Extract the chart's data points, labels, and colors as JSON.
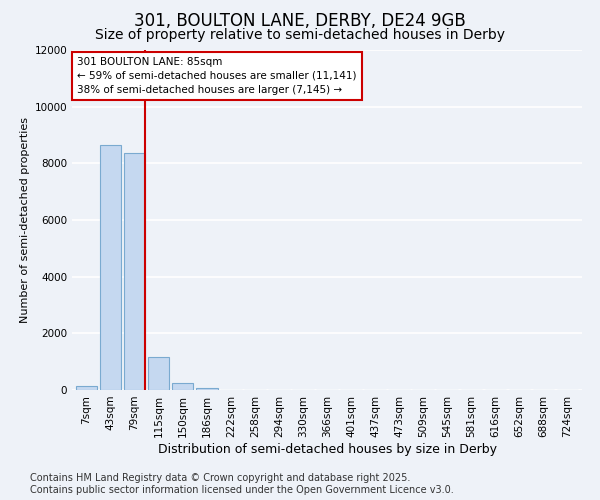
{
  "title_line1": "301, BOULTON LANE, DERBY, DE24 9GB",
  "title_line2": "Size of property relative to semi-detached houses in Derby",
  "xlabel": "Distribution of semi-detached houses by size in Derby",
  "ylabel": "Number of semi-detached properties",
  "categories": [
    "7sqm",
    "43sqm",
    "79sqm",
    "115sqm",
    "150sqm",
    "186sqm",
    "222sqm",
    "258sqm",
    "294sqm",
    "330sqm",
    "366sqm",
    "401sqm",
    "437sqm",
    "473sqm",
    "509sqm",
    "545sqm",
    "581sqm",
    "616sqm",
    "652sqm",
    "688sqm",
    "724sqm"
  ],
  "values": [
    150,
    8650,
    8350,
    1150,
    250,
    70,
    0,
    0,
    0,
    0,
    0,
    0,
    0,
    0,
    0,
    0,
    0,
    0,
    0,
    0,
    0
  ],
  "bar_color": "#c5d8f0",
  "bar_edge_color": "#7aaad0",
  "vline_x_index": 2,
  "vline_color": "#cc0000",
  "annotation_line1": "301 BOULTON LANE: 85sqm",
  "annotation_line2": "← 59% of semi-detached houses are smaller (11,141)",
  "annotation_line3": "38% of semi-detached houses are larger (7,145) →",
  "annotation_box_color": "#ffffff",
  "annotation_box_edgecolor": "#cc0000",
  "ylim": [
    0,
    12000
  ],
  "yticks": [
    0,
    2000,
    4000,
    6000,
    8000,
    10000,
    12000
  ],
  "footer_line1": "Contains HM Land Registry data © Crown copyright and database right 2025.",
  "footer_line2": "Contains public sector information licensed under the Open Government Licence v3.0.",
  "bg_color": "#eef2f8",
  "grid_color": "#ffffff",
  "title1_fontsize": 12,
  "title2_fontsize": 10,
  "xlabel_fontsize": 9,
  "ylabel_fontsize": 8,
  "footer_fontsize": 7,
  "tick_fontsize": 7.5
}
